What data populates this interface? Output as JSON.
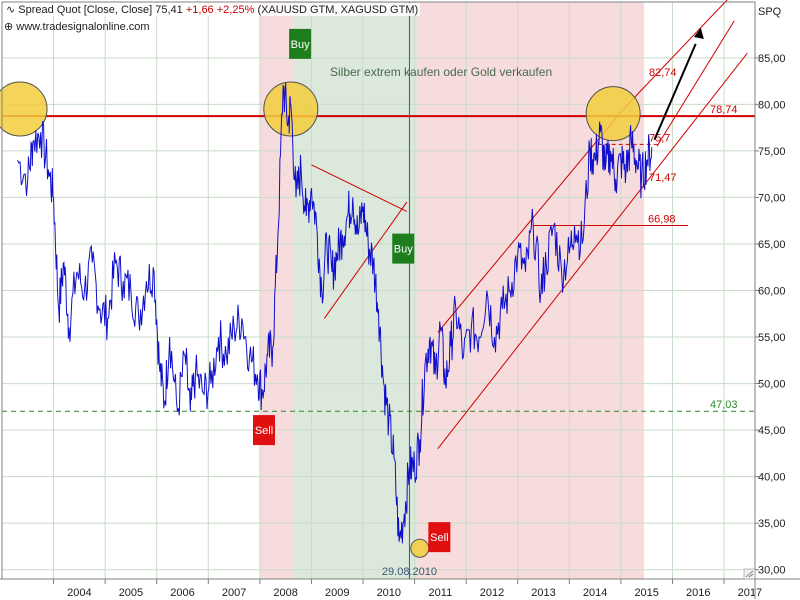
{
  "header": {
    "series_name": "Spread Quot [Close, Close]",
    "last_value": "75,41",
    "change_abs": "+1,66",
    "change_pct": "+2,25%",
    "components": "(XAUUSD GTM, XAGUSD GTM)",
    "source": "www.tradesignalonline.com",
    "symbol": "SPQ"
  },
  "colors": {
    "line": "#1010cc",
    "red_zone": "#f6dcdc",
    "green_zone": "#dce8dc",
    "grid": "#c9dcc9",
    "level_red": "#d00000",
    "level_green": "#2a8a2a",
    "buy": "#1e7e1e",
    "sell": "#e01010",
    "circle_fill": "#f2cc3c"
  },
  "chart_data": {
    "type": "line",
    "title": "Spread Quot [Close, Close]",
    "series": [
      {
        "name": "Spread Quot (XAUUSD GTM, XAGUSD GTM)",
        "x": [
          2003.3,
          2003.5,
          2003.6,
          2003.75,
          2003.9,
          2004.0,
          2004.1,
          2004.2,
          2004.3,
          2004.45,
          2004.6,
          2004.75,
          2004.9,
          2005.05,
          2005.2,
          2005.35,
          2005.5,
          2005.65,
          2005.8,
          2005.95,
          2006.05,
          2006.15,
          2006.25,
          2006.4,
          2006.55,
          2006.65,
          2006.75,
          2006.9,
          2007.05,
          2007.2,
          2007.35,
          2007.5,
          2007.65,
          2007.8,
          2007.95,
          2008.05,
          2008.15,
          2008.25,
          2008.35,
          2008.45,
          2008.55,
          2008.6,
          2008.7,
          2008.8,
          2008.9,
          2009.0,
          2009.1,
          2009.2,
          2009.3,
          2009.4,
          2009.5,
          2009.6,
          2009.7,
          2009.8,
          2009.9,
          2010.0,
          2010.1,
          2010.2,
          2010.3,
          2010.4,
          2010.5,
          2010.6,
          2010.7,
          2010.8,
          2010.9,
          2011.0,
          2011.1,
          2011.2,
          2011.3,
          2011.4,
          2011.5,
          2011.6,
          2011.7,
          2011.8,
          2011.95,
          2012.1,
          2012.25,
          2012.4,
          2012.55,
          2012.7,
          2012.85,
          2013.0,
          2013.15,
          2013.3,
          2013.45,
          2013.55,
          2013.7,
          2013.85,
          2014.0,
          2014.1,
          2014.25,
          2014.4,
          2014.5,
          2014.6,
          2014.7,
          2014.8,
          2014.9,
          2015.0,
          2015.1,
          2015.2,
          2015.3,
          2015.4,
          2015.5,
          2015.6
        ],
        "values": [
          74,
          72,
          76,
          77,
          73,
          70,
          58,
          63,
          56,
          62,
          60,
          63,
          58,
          57,
          63,
          61,
          60,
          57,
          61,
          62,
          52,
          48,
          55,
          47,
          53,
          47,
          51,
          49,
          50,
          55,
          53,
          56,
          57,
          53,
          51,
          49,
          53,
          54,
          66,
          82,
          78,
          80,
          70,
          73,
          68,
          71,
          67,
          60,
          65,
          62,
          64,
          66,
          68,
          70,
          66,
          69,
          65,
          63,
          58,
          50,
          46,
          42,
          33,
          36,
          41,
          41,
          44,
          52,
          55,
          51,
          56,
          50,
          54,
          58,
          53,
          56,
          55,
          60,
          55,
          58,
          60,
          64,
          62,
          67,
          60,
          63,
          67,
          62,
          64,
          67,
          65,
          75,
          74,
          77,
          73,
          75,
          72,
          74,
          73,
          76,
          74,
          72,
          74,
          75.4
        ]
      }
    ],
    "xlabel": "",
    "ylabel": "",
    "x_tick_labels": [
      "2004",
      "2005",
      "2006",
      "2007",
      "2008",
      "2009",
      "2010",
      "2011",
      "2012",
      "2013",
      "2014",
      "2015",
      "2016",
      "2017"
    ],
    "y_tick_labels": [
      "30,00",
      "35,00",
      "40,00",
      "45,00",
      "50,00",
      "55,00",
      "60,00",
      "65,00",
      "70,00",
      "75,00",
      "80,00",
      "85,00"
    ],
    "xlim": [
      2003.0,
      2017.6
    ],
    "ylim": [
      29,
      91
    ],
    "grid": true,
    "levels": [
      {
        "value": 78.74,
        "label": "78,74",
        "style": "solid-red"
      },
      {
        "value": 47.03,
        "label": "47,03",
        "style": "dashed-green"
      },
      {
        "value": 66.98,
        "label": "66,98",
        "style": "solid-red"
      },
      {
        "value": 82.74,
        "label": "82,74",
        "style": "label-red"
      },
      {
        "value": 75.7,
        "label": "75,7",
        "style": "dashed-red"
      },
      {
        "value": 71.47,
        "label": "71,47",
        "style": "label-red"
      }
    ],
    "zones": [
      {
        "from": 2008.0,
        "to": 2008.65,
        "kind": "red"
      },
      {
        "from": 2008.65,
        "to": 2011.05,
        "kind": "green"
      },
      {
        "from": 2011.05,
        "to": 2015.45,
        "kind": "red"
      }
    ],
    "signals": [
      {
        "x": 2008.78,
        "y": 86.5,
        "label": "Buy",
        "kind": "buy"
      },
      {
        "x": 2010.78,
        "y": 64.5,
        "label": "Buy",
        "kind": "buy"
      },
      {
        "x": 2008.08,
        "y": 45.0,
        "label": "Sell",
        "kind": "sell"
      },
      {
        "x": 2011.48,
        "y": 33.5,
        "label": "Sell",
        "kind": "sell"
      }
    ],
    "circles": [
      {
        "x": 2003.35,
        "y": 79.5
      },
      {
        "x": 2008.6,
        "y": 79.5
      },
      {
        "x": 2014.85,
        "y": 79.0
      },
      {
        "x": 2011.1,
        "y": 32.3
      }
    ],
    "annotation": "Silber extrem kaufen oder Gold verkaufen",
    "date_marker": {
      "x": 2010.9,
      "label": "29.08.2010"
    }
  }
}
